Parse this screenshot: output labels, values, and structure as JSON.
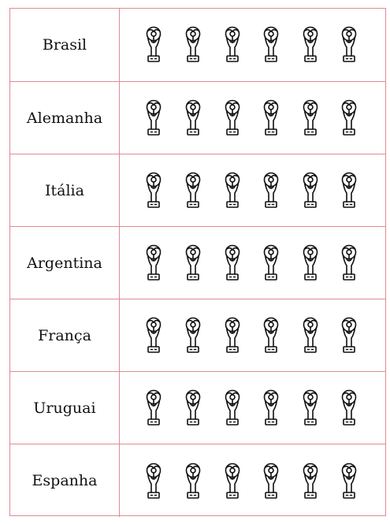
{
  "rows": [
    {
      "country": "Brasil",
      "trophies": 6
    },
    {
      "country": "Alemanha",
      "trophies": 6
    },
    {
      "country": "Itália",
      "trophies": 6
    },
    {
      "country": "Argentina",
      "trophies": 6
    },
    {
      "country": "França",
      "trophies": 6
    },
    {
      "country": "Uruguai",
      "trophies": 6
    },
    {
      "country": "Espanha",
      "trophies": 6
    }
  ],
  "icon": "trophy-icon",
  "colors": {
    "border": "#e08a94",
    "text": "#111111",
    "icon_stroke": "#111111"
  }
}
